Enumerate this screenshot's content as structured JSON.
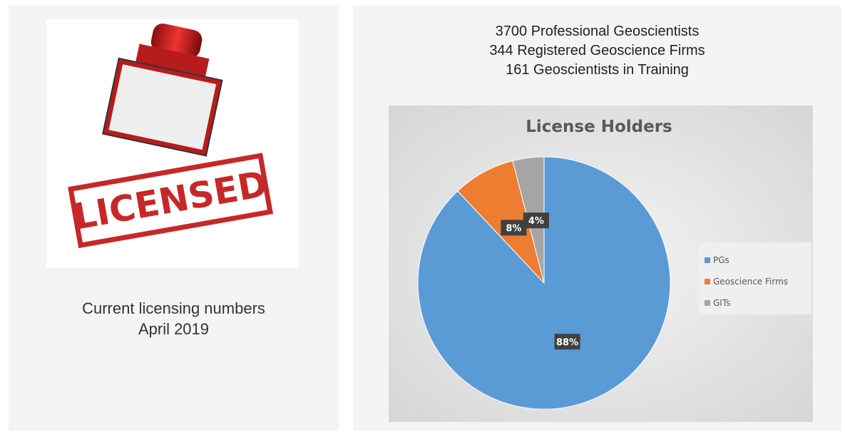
{
  "left": {
    "stamp_text": "LICENSED",
    "caption": [
      "Current licensing numbers",
      "April 2019"
    ]
  },
  "stats": [
    "3700 Professional Geoscientists",
    "344 Registered Geoscience Firms",
    "161 Geoscientists in Training"
  ],
  "chart_data": {
    "type": "pie",
    "title": "License Holders",
    "categories": [
      "PGs",
      "Geoscience Firms",
      "GITs"
    ],
    "values": [
      88,
      8,
      4
    ],
    "value_labels": [
      "88%",
      "8%",
      "4%"
    ],
    "colors": [
      "#5b9bd5",
      "#ed7d31",
      "#a5a5a5"
    ],
    "legend": "right"
  }
}
